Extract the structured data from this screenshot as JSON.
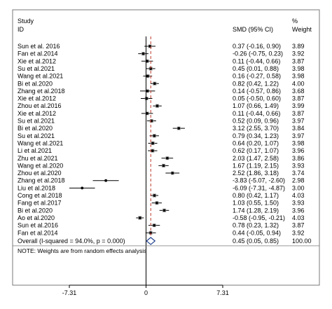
{
  "chart_data": {
    "type": "forest",
    "header": {
      "study_label_1": "Study",
      "study_label_2": "ID",
      "effect_label": "SMD (95% CI)",
      "weight_label_1": "%",
      "weight_label_2": "Weight"
    },
    "xlim": [
      -7.31,
      7.31
    ],
    "null_line": 0,
    "overall_line": 0.45,
    "ticks": [
      {
        "value": -7.31,
        "label": "-7.31"
      },
      {
        "value": 0,
        "label": "0"
      },
      {
        "value": 7.31,
        "label": "7.31"
      }
    ],
    "studies": [
      {
        "label": "Sun et al. 2016",
        "est": 0.37,
        "lo": -0.16,
        "hi": 0.9,
        "ci": "0.37 (-0.16, 0.90)",
        "weight": "3.89"
      },
      {
        "label": "Fan et al.2014",
        "est": -0.26,
        "lo": -0.75,
        "hi": 0.23,
        "ci": "-0.26 (-0.75, 0.23)",
        "weight": "3.92"
      },
      {
        "label": "Xie et al.2012",
        "est": 0.11,
        "lo": -0.44,
        "hi": 0.66,
        "ci": "0.11 (-0.44, 0.66)",
        "weight": "3.87"
      },
      {
        "label": "Su et al.2021",
        "est": 0.45,
        "lo": 0.01,
        "hi": 0.88,
        "ci": "0.45 (0.01, 0.88)",
        "weight": "3.98"
      },
      {
        "label": "Wang et al.2021",
        "est": 0.16,
        "lo": -0.27,
        "hi": 0.58,
        "ci": "0.16 (-0.27, 0.58)",
        "weight": "3.98"
      },
      {
        "label": "Bi et al.2020",
        "est": 0.82,
        "lo": 0.42,
        "hi": 1.22,
        "ci": "0.82 (0.42, 1.22)",
        "weight": "4.00"
      },
      {
        "label": "Zhang et al.2018",
        "est": 0.14,
        "lo": -0.57,
        "hi": 0.86,
        "ci": "0.14 (-0.57, 0.86)",
        "weight": "3.68"
      },
      {
        "label": "Xie et al.2012",
        "est": 0.05,
        "lo": -0.5,
        "hi": 0.6,
        "ci": "0.05 (-0.50, 0.60)",
        "weight": "3.87"
      },
      {
        "label": "Zhou et al.2016",
        "est": 1.07,
        "lo": 0.66,
        "hi": 1.49,
        "ci": "1.07 (0.66, 1.49)",
        "weight": "3.99"
      },
      {
        "label": "Xie et al.2012",
        "est": 0.11,
        "lo": -0.44,
        "hi": 0.66,
        "ci": "0.11 (-0.44, 0.66)",
        "weight": "3.87"
      },
      {
        "label": "Su et al.2021",
        "est": 0.52,
        "lo": 0.09,
        "hi": 0.96,
        "ci": "0.52 (0.09, 0.96)",
        "weight": "3.97"
      },
      {
        "label": "Bi et al.2020",
        "est": 3.12,
        "lo": 2.55,
        "hi": 3.7,
        "ci": "3.12 (2.55, 3.70)",
        "weight": "3.84"
      },
      {
        "label": "Su et al.2021",
        "est": 0.79,
        "lo": 0.34,
        "hi": 1.23,
        "ci": "0.79 (0.34, 1.23)",
        "weight": "3.97"
      },
      {
        "label": "Wang et al.2021",
        "est": 0.64,
        "lo": 0.2,
        "hi": 1.07,
        "ci": "0.64 (0.20, 1.07)",
        "weight": "3.98"
      },
      {
        "label": "Li et al.2021",
        "est": 0.62,
        "lo": 0.17,
        "hi": 1.07,
        "ci": "0.62 (0.17, 1.07)",
        "weight": "3.96"
      },
      {
        "label": "Zhu et al.2021",
        "est": 2.03,
        "lo": 1.47,
        "hi": 2.58,
        "ci": "2.03 (1.47, 2.58)",
        "weight": "3.86"
      },
      {
        "label": "Wang et al.2020",
        "est": 1.67,
        "lo": 1.19,
        "hi": 2.15,
        "ci": "1.67 (1.19, 2.15)",
        "weight": "3.93"
      },
      {
        "label": "Zhou et al.2020",
        "est": 2.52,
        "lo": 1.86,
        "hi": 3.18,
        "ci": "2.52 (1.86, 3.18)",
        "weight": "3.74"
      },
      {
        "label": "Zhang et al.2018",
        "est": -3.83,
        "lo": -5.07,
        "hi": -2.6,
        "ci": "-3.83 (-5.07, -2.60)",
        "weight": "2.98"
      },
      {
        "label": "Liu et al.2018",
        "est": -6.09,
        "lo": -7.31,
        "hi": -4.87,
        "ci": "-6.09 (-7.31, -4.87)",
        "weight": "3.00"
      },
      {
        "label": "Cong et al.2018",
        "est": 0.8,
        "lo": 0.42,
        "hi": 1.17,
        "ci": "0.80 (0.42, 1.17)",
        "weight": "4.03"
      },
      {
        "label": "Fang et al.2017",
        "est": 1.03,
        "lo": 0.55,
        "hi": 1.5,
        "ci": "1.03 (0.55, 1.50)",
        "weight": "3.93"
      },
      {
        "label": "Bi et al.2020",
        "est": 1.74,
        "lo": 1.28,
        "hi": 2.19,
        "ci": "1.74 (1.28, 2.19)",
        "weight": "3.96"
      },
      {
        "label": "Ao et al.2020",
        "est": -0.58,
        "lo": -0.95,
        "hi": -0.21,
        "ci": "-0.58 (-0.95, -0.21)",
        "weight": "4.03"
      },
      {
        "label": "Sun et al.2016",
        "est": 0.78,
        "lo": 0.23,
        "hi": 1.32,
        "ci": "0.78 (0.23, 1.32)",
        "weight": "3.87"
      },
      {
        "label": "Fan et al.2014",
        "est": 0.44,
        "lo": -0.05,
        "hi": 0.94,
        "ci": "0.44 (-0.05, 0.94)",
        "weight": "3.92"
      }
    ],
    "overall": {
      "label": "Overall  (I-squared = 94.0%, p = 0.000)",
      "est": 0.45,
      "lo": 0.05,
      "hi": 0.85,
      "ci": "0.45 (0.05, 0.85)",
      "weight": "100.00"
    },
    "note": "NOTE: Weights are from random effects analysis"
  }
}
